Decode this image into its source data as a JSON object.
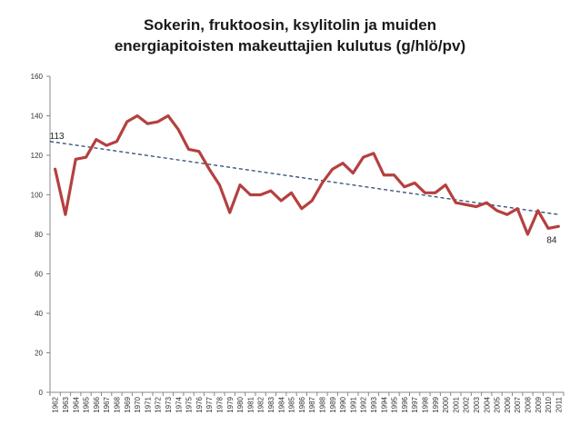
{
  "title": {
    "line1": "Sokerin, fruktoosin, ksylitolin ja muiden",
    "line2": "energiapitoisten makeuttajien kulutus (g/hlö/pv)"
  },
  "chart_data": {
    "type": "line",
    "title": "Sokerin, fruktoosin, ksylitolin ja muiden energiapitoisten makeuttajien kulutus (g/hlö/pv)",
    "xlabel": "",
    "ylabel": "",
    "x": [
      "1962",
      "1963",
      "1964",
      "1965",
      "1966",
      "1967",
      "1968",
      "1969",
      "1970",
      "1971",
      "1972",
      "1973",
      "1974",
      "1975",
      "1976",
      "1977",
      "1978",
      "1979",
      "1980",
      "1981",
      "1982",
      "1983",
      "1984",
      "1985",
      "1986",
      "1987",
      "1988",
      "1989",
      "1990",
      "1991",
      "1992",
      "1993",
      "1994",
      "1995",
      "1996",
      "1997",
      "1998",
      "1999",
      "2000",
      "2001",
      "2002",
      "2003",
      "2004",
      "2005",
      "2006",
      "2007",
      "2008",
      "2009",
      "2010",
      "2011"
    ],
    "series": [
      {
        "values": [
          113,
          90,
          118,
          119,
          128,
          125,
          127,
          137,
          140,
          136,
          137,
          140,
          133,
          123,
          122,
          113,
          105,
          91,
          105,
          100,
          100,
          102,
          97,
          101,
          93,
          97,
          106,
          113,
          116,
          111,
          119,
          121,
          110,
          110,
          104,
          106,
          101,
          101,
          105,
          96,
          95,
          94,
          96,
          92,
          90,
          93,
          80,
          92,
          83,
          84
        ],
        "color": "#b5403f"
      }
    ],
    "trendline": {
      "style": "dashed",
      "color": "#1f3864",
      "start": 127,
      "end": 90
    },
    "yticks": [
      0,
      20,
      40,
      60,
      80,
      100,
      120,
      140,
      160
    ],
    "ylim": [
      0,
      160
    ],
    "annotations": [
      {
        "label": "113",
        "x": "1962",
        "y": 113
      },
      {
        "label": "84",
        "x": "2011",
        "y": 84
      }
    ],
    "grid": false,
    "legend": "none"
  }
}
